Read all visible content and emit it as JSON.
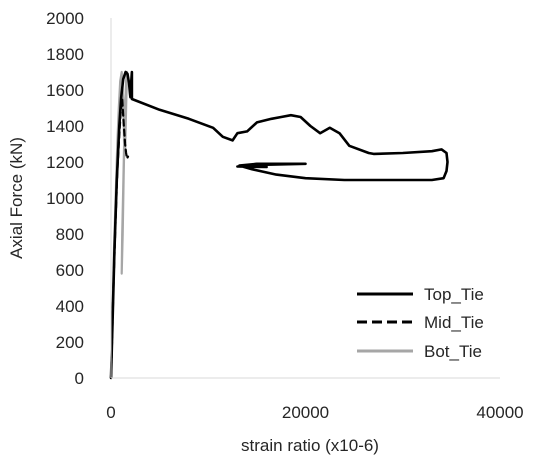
{
  "chart_data": {
    "type": "line",
    "title": "",
    "xlabel": "strain ratio (x10-6)",
    "ylabel": "Axial Force (kN)",
    "xlim": [
      0,
      40000
    ],
    "ylim": [
      0,
      2000
    ],
    "xticks": [
      0,
      20000,
      40000
    ],
    "yticks": [
      0,
      200,
      400,
      600,
      800,
      1000,
      1200,
      1400,
      1600,
      1800,
      2000
    ],
    "x_tick_labels": [
      "0",
      "20000",
      "40000"
    ],
    "y_tick_labels": [
      "0",
      "200",
      "400",
      "600",
      "800",
      "1000",
      "1200",
      "1400",
      "1600",
      "1800",
      "2000"
    ],
    "grid": false,
    "legend_position": "bottom-right",
    "series": [
      {
        "name": "Top_Tie",
        "color": "#000000",
        "dash": "solid",
        "points": [
          [
            0,
            0
          ],
          [
            150,
            300
          ],
          [
            350,
            700
          ],
          [
            600,
            1100
          ],
          [
            850,
            1400
          ],
          [
            1050,
            1560
          ],
          [
            1250,
            1660
          ],
          [
            1500,
            1700
          ],
          [
            1700,
            1690
          ],
          [
            1850,
            1640
          ],
          [
            1950,
            1580
          ],
          [
            2000,
            1560
          ],
          [
            2050,
            1620
          ],
          [
            2150,
            1700
          ],
          [
            2150,
            1550
          ],
          [
            5000,
            1490
          ],
          [
            8000,
            1440
          ],
          [
            10500,
            1390
          ],
          [
            11500,
            1340
          ],
          [
            12500,
            1320
          ],
          [
            13000,
            1360
          ],
          [
            14000,
            1370
          ],
          [
            15000,
            1420
          ],
          [
            16500,
            1440
          ],
          [
            17500,
            1450
          ],
          [
            18500,
            1460
          ],
          [
            19500,
            1450
          ],
          [
            20500,
            1400
          ],
          [
            21500,
            1360
          ],
          [
            22500,
            1390
          ],
          [
            23500,
            1360
          ],
          [
            24500,
            1290
          ],
          [
            26500,
            1250
          ],
          [
            27000,
            1245
          ],
          [
            30000,
            1250
          ],
          [
            33000,
            1260
          ],
          [
            34000,
            1270
          ],
          [
            34500,
            1250
          ],
          [
            34600,
            1200
          ],
          [
            34500,
            1150
          ],
          [
            34200,
            1110
          ],
          [
            33000,
            1100
          ],
          [
            27000,
            1100
          ],
          [
            24000,
            1100
          ],
          [
            20000,
            1110
          ],
          [
            17000,
            1130
          ],
          [
            14500,
            1160
          ],
          [
            13200,
            1180
          ],
          [
            15000,
            1190
          ],
          [
            20000,
            1190
          ],
          [
            16000,
            1185
          ],
          [
            13000,
            1175
          ],
          [
            16000,
            1172
          ]
        ]
      },
      {
        "name": "Mid_Tie",
        "color": "#000000",
        "dash": "dashed",
        "points": [
          [
            0,
            0
          ],
          [
            100,
            200
          ],
          [
            250,
            500
          ],
          [
            450,
            850
          ],
          [
            650,
            1150
          ],
          [
            850,
            1350
          ],
          [
            1000,
            1480
          ],
          [
            1150,
            1550
          ],
          [
            1300,
            1420
          ],
          [
            1450,
            1300
          ],
          [
            1550,
            1250
          ],
          [
            1650,
            1220
          ],
          [
            1750,
            1230
          ]
        ]
      },
      {
        "name": "Bot_Tie",
        "color": "#a6a6a6",
        "dash": "solid",
        "points": [
          [
            0,
            0
          ],
          [
            150,
            350
          ],
          [
            300,
            700
          ],
          [
            500,
            1050
          ],
          [
            650,
            1300
          ],
          [
            800,
            1500
          ],
          [
            950,
            1650
          ],
          [
            1100,
            1700
          ],
          [
            1250,
            1550
          ],
          [
            1350,
            1300
          ],
          [
            1250,
            1050
          ],
          [
            1150,
            800
          ],
          [
            1100,
            580
          ],
          [
            1200,
            800
          ],
          [
            1300,
            1100
          ],
          [
            1400,
            1400
          ],
          [
            1550,
            1650
          ],
          [
            1650,
            1700
          ],
          [
            1550,
            1500
          ],
          [
            1450,
            1250
          ]
        ]
      }
    ]
  }
}
